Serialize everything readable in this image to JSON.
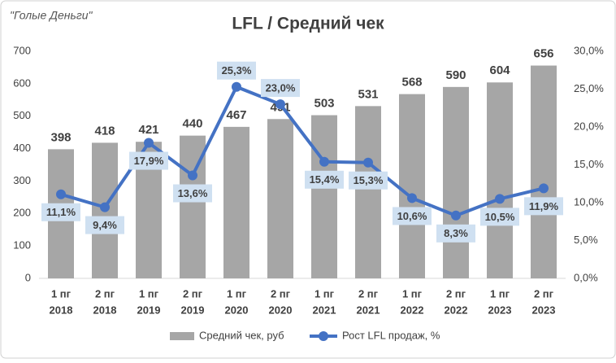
{
  "chart_data": {
    "type": "bar-line",
    "title": "LFL / Средний чек",
    "watermark": "\"Голые Деньги\"",
    "categories": [
      [
        "1 пг",
        "2018"
      ],
      [
        "2 пг",
        "2018"
      ],
      [
        "1 пг",
        "2019"
      ],
      [
        "2 пг",
        "2019"
      ],
      [
        "1 пг",
        "2020"
      ],
      [
        "2 пг",
        "2020"
      ],
      [
        "1 пг",
        "2021"
      ],
      [
        "2 пг",
        "2021"
      ],
      [
        "1 пг",
        "2022"
      ],
      [
        "2 пг",
        "2022"
      ],
      [
        "1 пг",
        "2023"
      ],
      [
        "2 пг",
        "2023"
      ]
    ],
    "series": [
      {
        "name": "Средний чек, руб",
        "type": "bar",
        "color": "#a6a6a6",
        "values": [
          398,
          418,
          421,
          440,
          467,
          491,
          503,
          531,
          568,
          590,
          604,
          656
        ]
      },
      {
        "name": "Рост LFL продаж, %",
        "type": "line",
        "axis": "y2",
        "color": "#4472c4",
        "values": [
          11.1,
          9.4,
          17.9,
          13.6,
          25.3,
          23.0,
          15.4,
          15.3,
          10.6,
          8.3,
          10.5,
          11.9
        ],
        "value_labels": [
          "11,1%",
          "9,4%",
          "17,9%",
          "13,6%",
          "25,3%",
          "23,0%",
          "15,4%",
          "15,3%",
          "10,6%",
          "8,3%",
          "10,5%",
          "11,9%"
        ]
      }
    ],
    "ylim": [
      0,
      700
    ],
    "yticks": [
      0,
      100,
      200,
      300,
      400,
      500,
      600,
      700
    ],
    "y2lim": [
      0,
      30
    ],
    "y2ticks": [
      {
        "value": 0,
        "label": "0,0%"
      },
      {
        "value": 5,
        "label": "5,0%"
      },
      {
        "value": 10,
        "label": "10,0%"
      },
      {
        "value": 15,
        "label": "15,0%"
      },
      {
        "value": 20,
        "label": "20,0%"
      },
      {
        "value": 25,
        "label": "25,0%"
      },
      {
        "value": 30,
        "label": "30,0%"
      }
    ],
    "legend": "bottom"
  }
}
